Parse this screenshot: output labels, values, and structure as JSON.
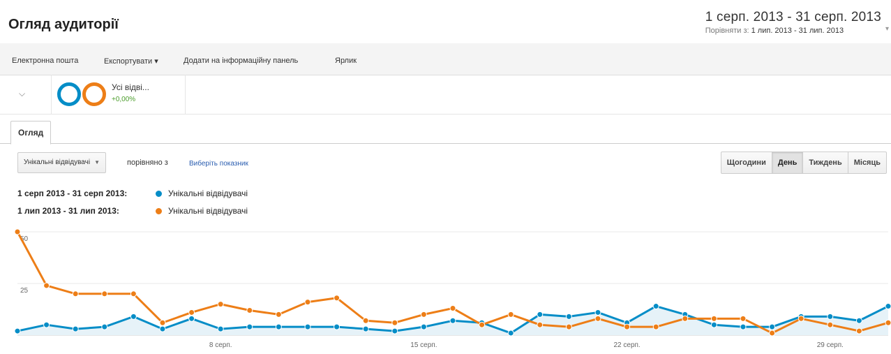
{
  "header": {
    "title": "Огляд аудиторії",
    "date_range": "1 серп. 2013 - 31 серп. 2013",
    "compare_prefix": "Порівняти з:",
    "compare_range": "1 лип. 2013 - 31 лип. 2013"
  },
  "toolbar": {
    "email": "Електронна пошта",
    "export": "Експортувати ▾",
    "add_dashboard": "Додати на інформаційну панель",
    "shortcut": "Ярлик"
  },
  "segment": {
    "label": "Усі відві...",
    "change": "+0,00%",
    "colors": [
      "#058dc7",
      "#ed7e17"
    ]
  },
  "tabs": [
    "Огляд"
  ],
  "controls": {
    "metric": "Унікальні відвідувачі",
    "compared_with": "порівняно з",
    "pick_metric": "Виберіть показник",
    "granularity": [
      "Щогодини",
      "День",
      "Тиждень",
      "Місяць"
    ],
    "granularity_active": "День"
  },
  "legend": [
    {
      "range": "1 серп 2013 - 31 серп 2013:",
      "name": "Унікальні відвідувачі",
      "color": "#058dc7"
    },
    {
      "range": "1 лип 2013 - 31 лип 2013:",
      "name": "Унікальні відвідувачі",
      "color": "#ed7e17"
    }
  ],
  "chart_data": {
    "type": "line",
    "y_ticks": [
      "50",
      "25"
    ],
    "ylim": [
      0,
      50
    ],
    "x_ticks": [
      {
        "day": 8,
        "label": "8 серп."
      },
      {
        "day": 15,
        "label": "15 серп."
      },
      {
        "day": 22,
        "label": "22 серп."
      },
      {
        "day": 29,
        "label": "29 серп."
      }
    ],
    "grid": true,
    "series": [
      {
        "name": "Унікальні відвідувачі",
        "period": "1 серп 2013 - 31 серп 2013",
        "color": "#058dc7",
        "fill": true,
        "x": [
          1,
          2,
          3,
          4,
          5,
          6,
          7,
          8,
          9,
          10,
          11,
          12,
          13,
          14,
          15,
          16,
          17,
          18,
          19,
          20,
          21,
          22,
          23,
          24,
          25,
          26,
          27,
          28,
          29,
          30,
          31
        ],
        "values": [
          2,
          5,
          3,
          4,
          9,
          3,
          8,
          3,
          4,
          4,
          4,
          4,
          3,
          2,
          4,
          7,
          6,
          1,
          10,
          9,
          11,
          6,
          14,
          10,
          5,
          4,
          4,
          9,
          9,
          7,
          14
        ]
      },
      {
        "name": "Унікальні відвідувачі",
        "period": "1 лип 2013 - 31 лип 2013",
        "color": "#ed7e17",
        "fill": false,
        "x": [
          1,
          2,
          3,
          4,
          5,
          6,
          7,
          8,
          9,
          10,
          11,
          12,
          13,
          14,
          15,
          16,
          17,
          18,
          19,
          20,
          21,
          22,
          23,
          24,
          25,
          26,
          27,
          28,
          29,
          30,
          31
        ],
        "values": [
          50,
          24,
          20,
          20,
          20,
          6,
          11,
          15,
          12,
          10,
          16,
          18,
          7,
          6,
          10,
          13,
          5,
          10,
          5,
          4,
          8,
          4,
          4,
          8,
          8,
          8,
          1,
          8,
          5,
          2,
          6
        ]
      }
    ]
  }
}
